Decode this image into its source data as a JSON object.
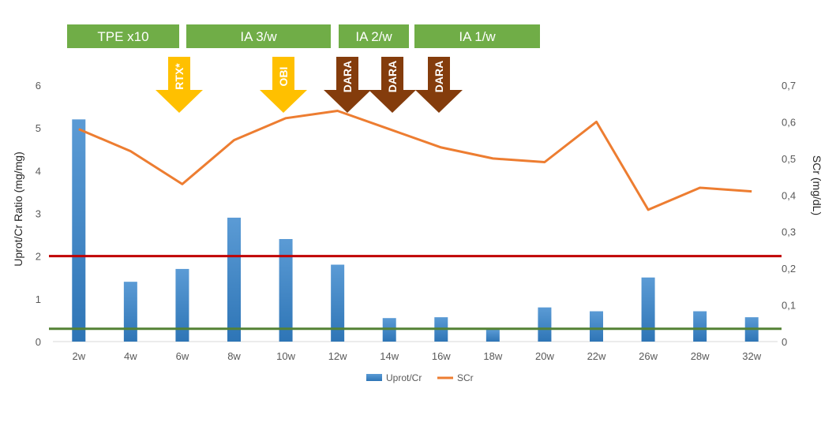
{
  "colors": {
    "bar": "#5b9bd5",
    "bar_dark": "#2e75b6",
    "line": "#ed7d31",
    "ref_red": "#c00000",
    "ref_green": "#548235",
    "banner": "#70ad47",
    "arrow_yellow": "#ffc000",
    "arrow_brown": "#843c0c",
    "grid": "#d9d9d9"
  },
  "banners": [
    {
      "label": "TPE x10"
    },
    {
      "label": "IA 3/w"
    },
    {
      "label": "IA 2/w"
    },
    {
      "label": "IA 1/w"
    }
  ],
  "arrows": [
    {
      "label": "RTX*",
      "color": "yellow"
    },
    {
      "label": "OBI",
      "color": "yellow"
    },
    {
      "label": "DARA",
      "color": "brown"
    },
    {
      "label": "DARA",
      "color": "brown"
    },
    {
      "label": "DARA",
      "color": "brown"
    }
  ],
  "chart_data": {
    "type": "bar",
    "categories": [
      "2w",
      "4w",
      "6w",
      "8w",
      "10w",
      "12w",
      "14w",
      "16w",
      "18w",
      "20w",
      "22w",
      "26w",
      "28w",
      "32w"
    ],
    "series": [
      {
        "name": "Uprot/Cr",
        "type": "bar",
        "axis": "left",
        "values": [
          5.2,
          1.4,
          1.7,
          2.9,
          2.4,
          1.8,
          0.55,
          0.57,
          0.28,
          0.8,
          0.71,
          1.5,
          0.71,
          0.57
        ]
      },
      {
        "name": "SCr",
        "type": "line",
        "axis": "right",
        "values": [
          0.58,
          0.52,
          0.43,
          0.55,
          0.61,
          0.63,
          0.58,
          0.53,
          0.5,
          0.49,
          0.6,
          0.36,
          0.42,
          0.41
        ]
      }
    ],
    "reference_lines": [
      {
        "axis": "left",
        "value": 2.0,
        "color": "#c00000"
      },
      {
        "axis": "left",
        "value": 0.3,
        "color": "#548235"
      }
    ],
    "ylabel": "Uprot/Cr Ratio (mg/mg)",
    "y2label": "SCr (mg/dL)",
    "ylim": [
      0,
      6
    ],
    "y2lim": [
      0,
      0.7
    ],
    "yticks": [
      "0",
      "1",
      "2",
      "3",
      "4",
      "5",
      "6"
    ],
    "y2ticks": [
      "0",
      "0,1",
      "0,2",
      "0,3",
      "0,4",
      "0,5",
      "0,6",
      "0,7"
    ],
    "grid": false,
    "legend_position": "bottom"
  }
}
